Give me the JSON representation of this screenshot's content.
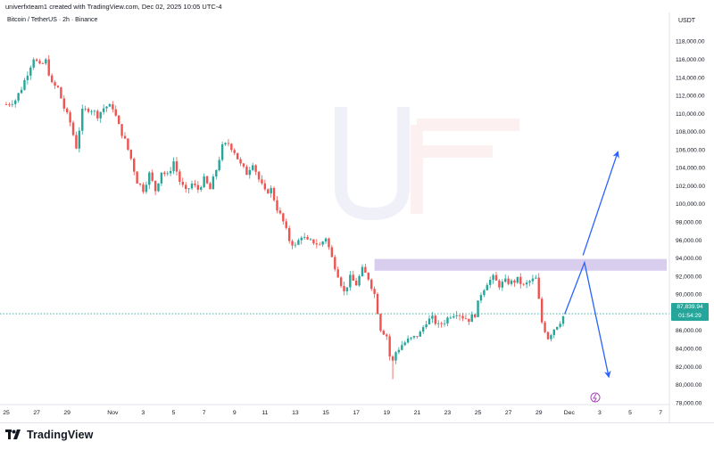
{
  "header": {
    "credit": "univerfxteam1 created with TradingView.com, Dec 02, 2025 10:05 UTC-4",
    "symbol": "Bitcoin / TetherUS · 2h · Binance",
    "currency": "USDT"
  },
  "price_tag": {
    "price": "87,839.94",
    "countdown": "01:54:29"
  },
  "footer": {
    "brand": "TradingView"
  },
  "colors": {
    "up": "#26a69a",
    "down": "#ef5350",
    "wick": "#5d606b",
    "zone": "#d1c4e9",
    "arrow": "#2962ff",
    "price_line": "#26a69a"
  },
  "chart_data": {
    "type": "line",
    "xlabels": [
      "25",
      "27",
      "29",
      "Nov",
      "3",
      "5",
      "7",
      "9",
      "11",
      "13",
      "15",
      "17",
      "19",
      "21",
      "23",
      "25",
      "27",
      "29",
      "Dec",
      "3",
      "5",
      "7"
    ],
    "ylabels": [
      "118,000.00",
      "116,000.00",
      "114,000.00",
      "112,000.00",
      "110,000.00",
      "108,000.00",
      "106,000.00",
      "104,000.00",
      "102,000.00",
      "100,000.00",
      "98,000.00",
      "96,000.00",
      "94,000.00",
      "92,000.00",
      "90,000.00",
      "88,000.00",
      "86,000.00",
      "84,000.00",
      "82,000.00",
      "80,000.00",
      "78,000.00"
    ],
    "yticks": [
      118000,
      116000,
      114000,
      112000,
      110000,
      108000,
      106000,
      104000,
      102000,
      100000,
      98000,
      96000,
      94000,
      92000,
      90000,
      88000,
      86000,
      84000,
      82000,
      80000,
      78000
    ],
    "ylim": [
      76800,
      119600
    ],
    "x_days": [
      0,
      2,
      4,
      7,
      9,
      11,
      13,
      15,
      17,
      19,
      21,
      23,
      25,
      27,
      29,
      31,
      33,
      35,
      37,
      39,
      41,
      43
    ],
    "price_path": [
      [
        0,
        111000
      ],
      [
        0.6,
        111500
      ],
      [
        1.0,
        112800
      ],
      [
        1.4,
        114500
      ],
      [
        1.8,
        116200
      ],
      [
        2.2,
        115200
      ],
      [
        2.6,
        115800
      ],
      [
        3.0,
        113200
      ],
      [
        3.4,
        112800
      ],
      [
        3.8,
        110600
      ],
      [
        4.2,
        109000
      ],
      [
        4.6,
        106300
      ],
      [
        5.0,
        110200
      ],
      [
        5.5,
        110600
      ],
      [
        6.0,
        109800
      ],
      [
        6.5,
        110800
      ],
      [
        7.0,
        110700
      ],
      [
        7.4,
        108600
      ],
      [
        7.8,
        107000
      ],
      [
        8.2,
        105000
      ],
      [
        8.6,
        102500
      ],
      [
        9.0,
        101600
      ],
      [
        9.4,
        103300
      ],
      [
        9.8,
        101500
      ],
      [
        10.2,
        103600
      ],
      [
        10.6,
        103100
      ],
      [
        11.0,
        104700
      ],
      [
        11.4,
        102500
      ],
      [
        11.8,
        101300
      ],
      [
        12.2,
        102200
      ],
      [
        12.6,
        101600
      ],
      [
        13.0,
        102700
      ],
      [
        13.4,
        101600
      ],
      [
        13.8,
        103800
      ],
      [
        14.2,
        106300
      ],
      [
        14.6,
        106700
      ],
      [
        15.0,
        105800
      ],
      [
        15.4,
        104300
      ],
      [
        15.8,
        103400
      ],
      [
        16.2,
        104600
      ],
      [
        16.6,
        102700
      ],
      [
        17.0,
        101300
      ],
      [
        17.4,
        101600
      ],
      [
        17.8,
        99500
      ],
      [
        18.2,
        98000
      ],
      [
        18.6,
        96000
      ],
      [
        19.0,
        95300
      ],
      [
        19.4,
        96500
      ],
      [
        19.8,
        95800
      ],
      [
        20.2,
        95800
      ],
      [
        20.6,
        95400
      ],
      [
        21.0,
        96300
      ],
      [
        21.4,
        94000
      ],
      [
        21.8,
        92200
      ],
      [
        22.2,
        90200
      ],
      [
        22.6,
        91800
      ],
      [
        23.0,
        91100
      ],
      [
        23.4,
        92700
      ],
      [
        23.8,
        91800
      ],
      [
        24.2,
        90000
      ],
      [
        24.6,
        86200
      ],
      [
        25.0,
        85400
      ],
      [
        25.3,
        82000
      ],
      [
        25.6,
        83600
      ],
      [
        26.0,
        84400
      ],
      [
        26.4,
        84900
      ],
      [
        26.8,
        85200
      ],
      [
        27.2,
        85700
      ],
      [
        27.6,
        87000
      ],
      [
        28.0,
        87300
      ],
      [
        28.4,
        86500
      ],
      [
        28.8,
        87000
      ],
      [
        29.2,
        87700
      ],
      [
        29.6,
        88000
      ],
      [
        30.0,
        87500
      ],
      [
        30.4,
        87200
      ],
      [
        30.8,
        87800
      ],
      [
        31.2,
        90100
      ],
      [
        31.6,
        91300
      ],
      [
        32.0,
        91800
      ],
      [
        32.4,
        91000
      ],
      [
        32.8,
        91400
      ],
      [
        33.2,
        91300
      ],
      [
        33.6,
        91600
      ],
      [
        34.0,
        90900
      ],
      [
        34.4,
        91400
      ],
      [
        34.8,
        91700
      ],
      [
        35.2,
        86900
      ],
      [
        35.6,
        85200
      ],
      [
        36.0,
        86200
      ],
      [
        36.4,
        87000
      ],
      [
        36.7,
        87840
      ]
    ],
    "low_point": [
      25.3,
      80600
    ],
    "current_price": 87839.94,
    "resistance_zone": [
      92600,
      93900
    ],
    "projection_up": [
      [
        37.9,
        94300
      ],
      [
        40.2,
        105800
      ]
    ],
    "projection_down": [
      [
        36.7,
        87800
      ],
      [
        38.0,
        93500
      ],
      [
        39.6,
        80800
      ]
    ]
  }
}
